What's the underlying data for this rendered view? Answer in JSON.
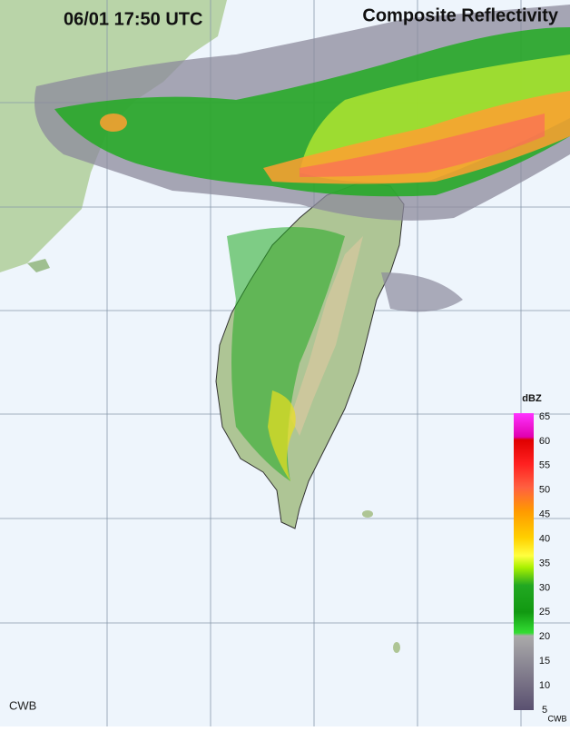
{
  "header": {
    "time": "06/01 17:50 UTC",
    "title": "Composite Reflectivity"
  },
  "legend": {
    "unit": "dBZ",
    "labels": [
      65,
      60,
      55,
      50,
      45,
      40,
      35,
      30,
      25,
      20,
      15,
      10,
      5
    ],
    "credit": "CWB"
  },
  "credit": "CWB"
}
